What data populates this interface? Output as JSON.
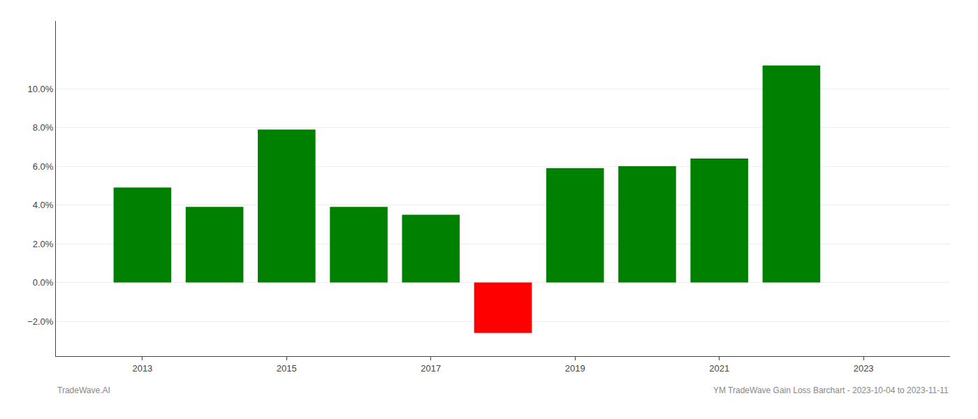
{
  "chart_data": {
    "type": "bar",
    "x": [
      2013,
      2014,
      2015,
      2016,
      2017,
      2018,
      2019,
      2020,
      2021,
      2022
    ],
    "values": [
      0.049,
      0.039,
      0.079,
      0.039,
      0.035,
      -0.026,
      0.059,
      0.06,
      0.064,
      0.112
    ],
    "colors": [
      "#008000",
      "#008000",
      "#008000",
      "#008000",
      "#008000",
      "#ff0000",
      "#008000",
      "#008000",
      "#008000",
      "#008000"
    ],
    "xlim": [
      2011.8,
      2024.2
    ],
    "xticks": [
      2013,
      2015,
      2017,
      2019,
      2021,
      2023
    ],
    "ylim": [
      -0.038,
      0.135
    ],
    "yticks": [
      {
        "value": -0.02,
        "label": "−2.0%"
      },
      {
        "value": 0.0,
        "label": "0.0%"
      },
      {
        "value": 0.02,
        "label": "2.0%"
      },
      {
        "value": 0.04,
        "label": "4.0%"
      },
      {
        "value": 0.06,
        "label": "6.0%"
      },
      {
        "value": 0.08,
        "label": "8.0%"
      },
      {
        "value": 0.1,
        "label": "10.0%"
      }
    ],
    "grid": "y",
    "annotations": [
      "TradeWave.AI",
      "YM TradeWave Gain Loss Barchart - 2023-10-04 to 2023-11-11"
    ]
  }
}
